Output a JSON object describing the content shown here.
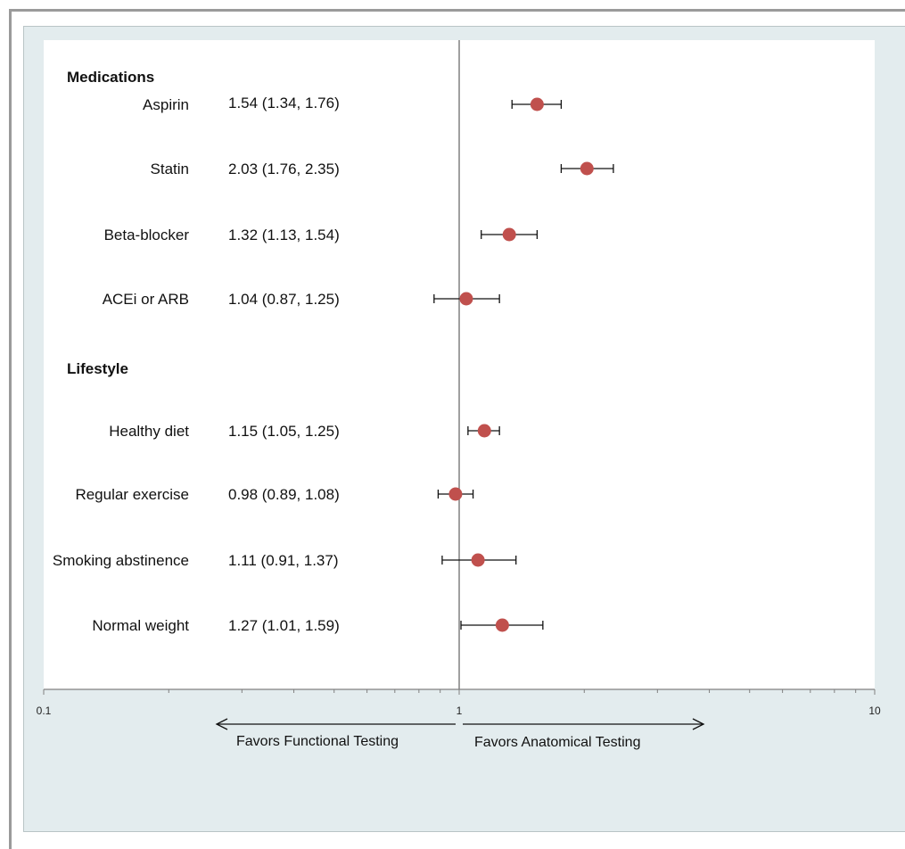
{
  "chart_data": {
    "type": "forest",
    "x_scale": "log",
    "xlim": [
      0.1,
      10
    ],
    "reference_line": 1,
    "x_ticks": [
      "0.1",
      "1",
      "10"
    ],
    "grid": false,
    "sections": [
      {
        "header": "Medications",
        "rows": [
          {
            "label": "Aspirin",
            "text": "1.54 (1.34, 1.76)",
            "estimate": 1.54,
            "lower": 1.34,
            "upper": 1.76
          },
          {
            "label": "Statin",
            "text": "2.03 (1.76, 2.35)",
            "estimate": 2.03,
            "lower": 1.76,
            "upper": 2.35
          },
          {
            "label": "Beta-blocker",
            "text": "1.32 (1.13, 1.54)",
            "estimate": 1.32,
            "lower": 1.13,
            "upper": 1.54
          },
          {
            "label": "ACEi or ARB",
            "text": "1.04 (0.87, 1.25)",
            "estimate": 1.04,
            "lower": 0.87,
            "upper": 1.25
          }
        ]
      },
      {
        "header": "Lifestyle",
        "rows": [
          {
            "label": "Healthy diet",
            "text": "1.15 (1.05, 1.25)",
            "estimate": 1.15,
            "lower": 1.05,
            "upper": 1.25
          },
          {
            "label": "Regular exercise",
            "text": "0.98 (0.89, 1.08)",
            "estimate": 0.98,
            "lower": 0.89,
            "upper": 1.08
          },
          {
            "label": "Smoking abstinence",
            "text": "1.11 (0.91, 1.37)",
            "estimate": 1.11,
            "lower": 0.91,
            "upper": 1.37
          },
          {
            "label": "Normal weight",
            "text": "1.27 (1.01, 1.59)",
            "estimate": 1.27,
            "lower": 1.01,
            "upper": 1.59
          }
        ]
      }
    ],
    "annotations": {
      "left": "Favors Functional Testing",
      "right": "Favors Anatomical Testing"
    }
  },
  "colors": {
    "marker": "#c0504d",
    "axis": "#808080",
    "panel": "#e3ecee"
  }
}
